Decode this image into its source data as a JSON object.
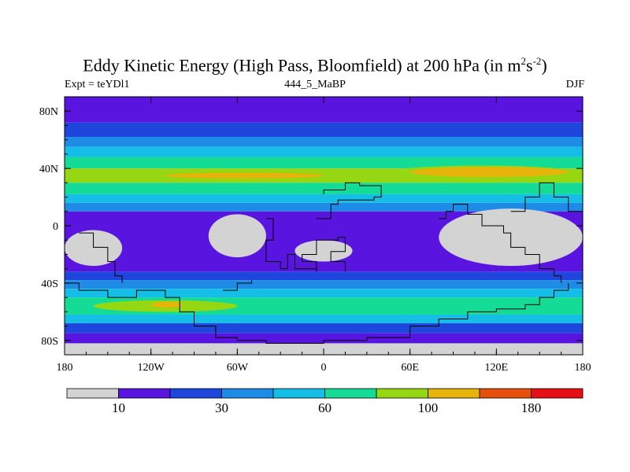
{
  "chart_data": {
    "type": "heatmap",
    "title_main": "Eddy Kinetic Energy (High Pass, Bloomfield) at 200 hPa (in m",
    "title_sup1": "2",
    "title_mid": "s",
    "title_sup2": "-2",
    "title_end": ")",
    "subtitle_left": "Expt = teYDl1",
    "subtitle_center": "444_5_MaBP",
    "subtitle_right": "DJF",
    "x_ticks": [
      {
        "value": -180,
        "label": "180"
      },
      {
        "value": -120,
        "label": "120W"
      },
      {
        "value": -60,
        "label": "60W"
      },
      {
        "value": 0,
        "label": "0"
      },
      {
        "value": 60,
        "label": "60E"
      },
      {
        "value": 120,
        "label": "120E"
      },
      {
        "value": 180,
        "label": "180"
      }
    ],
    "y_ticks": [
      {
        "value": 80,
        "label": "80N"
      },
      {
        "value": 40,
        "label": "40N"
      },
      {
        "value": 0,
        "label": "0"
      },
      {
        "value": -40,
        "label": "40S"
      },
      {
        "value": -80,
        "label": "80S"
      }
    ],
    "xlim": [
      -180,
      180
    ],
    "ylim": [
      -90,
      90
    ],
    "levels": [
      10,
      20,
      30,
      45,
      60,
      80,
      100,
      140,
      180
    ],
    "colorbar_colors": [
      "#d3d3d3",
      "#5a14e0",
      "#1e46dc",
      "#1e8ce6",
      "#14bee6",
      "#14dc96",
      "#96d714",
      "#e6b40a",
      "#e6500a",
      "#e60f14"
    ],
    "colorbar_labels": [
      {
        "boundary": 1,
        "label": "10"
      },
      {
        "boundary": 3,
        "label": "30"
      },
      {
        "boundary": 5,
        "label": "60"
      },
      {
        "boundary": 7,
        "label": "100"
      },
      {
        "boundary": 9,
        "label": "180"
      }
    ],
    "lat_bands": [
      {
        "lat": [
          90,
          72
        ],
        "level": 1
      },
      {
        "lat": [
          72,
          62
        ],
        "level": 2
      },
      {
        "lat": [
          62,
          55
        ],
        "level": 3
      },
      {
        "lat": [
          55,
          48
        ],
        "level": 4
      },
      {
        "lat": [
          48,
          40
        ],
        "level": 5
      },
      {
        "lat": [
          40,
          30
        ],
        "level": 6
      },
      {
        "lat": [
          30,
          22
        ],
        "level": 5
      },
      {
        "lat": [
          22,
          16
        ],
        "level": 4
      },
      {
        "lat": [
          16,
          10
        ],
        "level": 3
      },
      {
        "lat": [
          10,
          -32
        ],
        "level": 1
      },
      {
        "lat": [
          -32,
          -38
        ],
        "level": 2
      },
      {
        "lat": [
          -38,
          -44
        ],
        "level": 3
      },
      {
        "lat": [
          -44,
          -50
        ],
        "level": 4
      },
      {
        "lat": [
          -50,
          -62
        ],
        "level": 5
      },
      {
        "lat": [
          -62,
          -68
        ],
        "level": 4
      },
      {
        "lat": [
          -68,
          -75
        ],
        "level": 2
      },
      {
        "lat": [
          -75,
          -82
        ],
        "level": 1
      },
      {
        "lat": [
          -82,
          -90
        ],
        "level": 0
      }
    ],
    "patches": [
      {
        "level": 6,
        "lon": [
          -120,
          40
        ],
        "lat": [
          31,
          39
        ]
      },
      {
        "level": 7,
        "lon": [
          -110,
          0
        ],
        "lat": [
          33,
          37
        ]
      },
      {
        "level": 6,
        "lon": [
          40,
          180
        ],
        "lat": [
          30,
          42
        ]
      },
      {
        "level": 7,
        "lon": [
          60,
          170
        ],
        "lat": [
          34,
          41
        ]
      },
      {
        "level": 6,
        "lon": [
          -160,
          -60
        ],
        "lat": [
          -60,
          -52
        ]
      },
      {
        "level": 7,
        "lon": [
          -120,
          -98
        ],
        "lat": [
          -57,
          -53
        ]
      }
    ],
    "low_regions": [
      {
        "lon": [
          -180,
          -140
        ],
        "lat": [
          -3,
          -28
        ]
      },
      {
        "lon": [
          -80,
          -40
        ],
        "lat": [
          8,
          -22
        ]
      },
      {
        "lon": [
          -20,
          20
        ],
        "lat": [
          -10,
          -25
        ]
      },
      {
        "lon": [
          80,
          180
        ],
        "lat": [
          12,
          -28
        ]
      }
    ]
  }
}
